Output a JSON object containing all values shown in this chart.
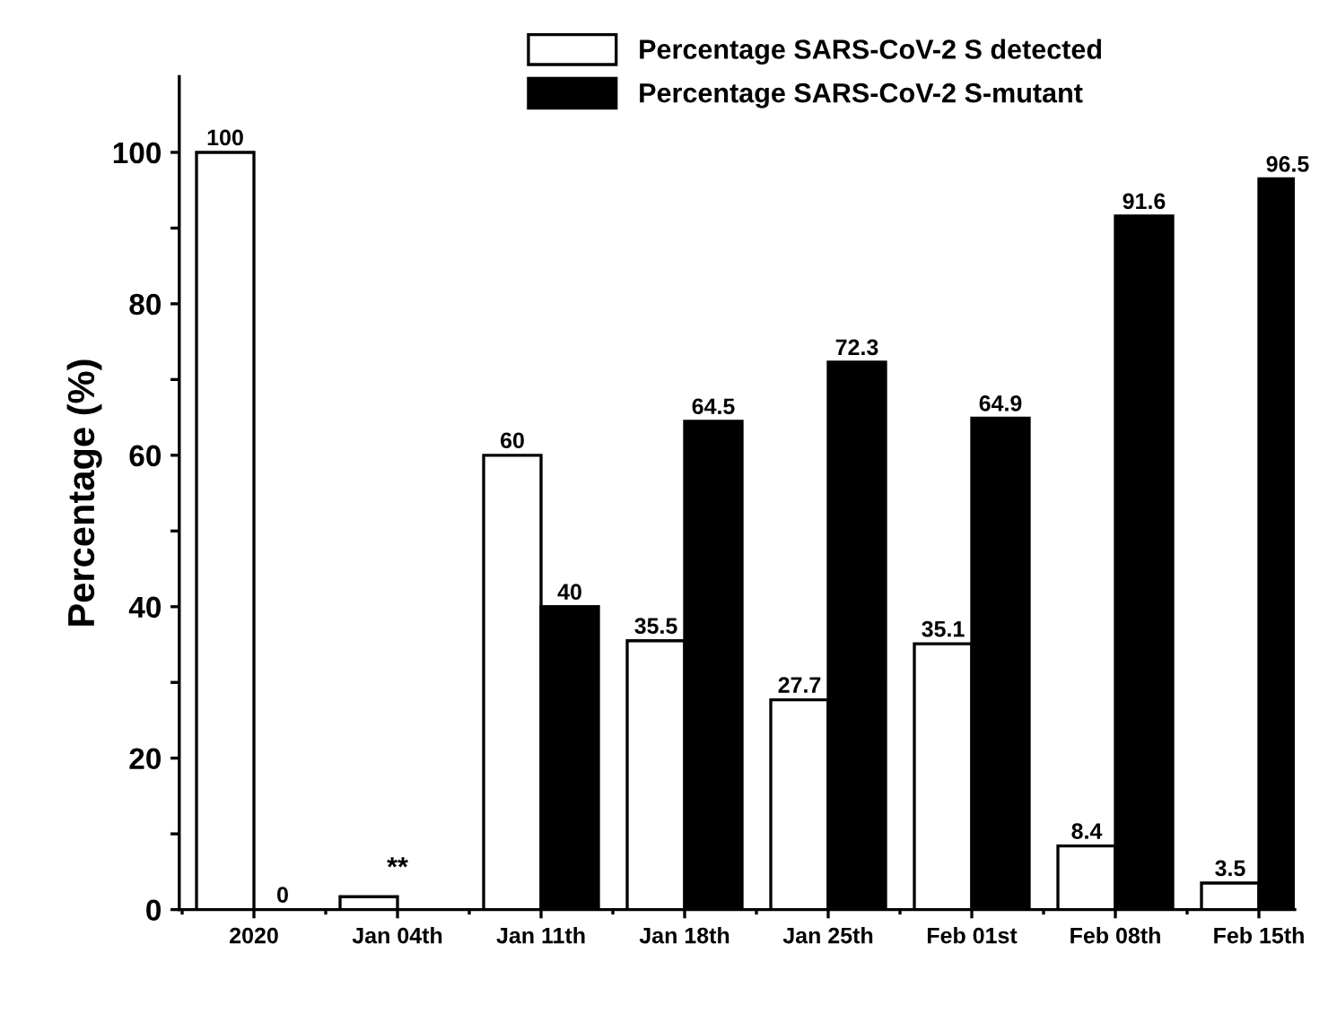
{
  "chart_data": {
    "type": "bar",
    "ylabel": "Percentage (%)",
    "categories": [
      "2020",
      "Jan 04th",
      "Jan 11th",
      "Jan 18th",
      "Jan 25th",
      "Feb 01st",
      "Feb 08th",
      "Feb 15th"
    ],
    "series": [
      {
        "name": "Percentage SARS-CoV-2 S detected",
        "color": "#ffffff",
        "values": [
          100,
          1.7,
          60,
          35.5,
          27.7,
          35.1,
          8.4,
          3.5
        ],
        "value_labels": [
          "100",
          null,
          "60",
          "35.5",
          "27.7",
          "35.1",
          "8.4",
          "3.5"
        ]
      },
      {
        "name": "Percentage SARS-CoV-2 S-mutant",
        "color": "#000000",
        "values": [
          0,
          null,
          40,
          64.5,
          72.3,
          64.9,
          91.6,
          96.5
        ],
        "value_labels": [
          "0",
          null,
          "40",
          "64.5",
          "72.3",
          "64.9",
          "91.6",
          "96.5"
        ]
      }
    ],
    "annotations": [
      {
        "text": "**",
        "x": "Jan 04th",
        "y": 1.7
      }
    ],
    "ylim": [
      0,
      110
    ],
    "yticks": [
      0,
      {
        "value": 10,
        "label": null
      },
      20,
      {
        "value": 30,
        "label": null
      },
      40,
      {
        "value": 50,
        "label": null
      },
      60,
      {
        "value": 70,
        "label": null
      },
      80,
      {
        "value": 90,
        "label": null
      },
      100
    ],
    "legend": "top right",
    "grid": false
  }
}
